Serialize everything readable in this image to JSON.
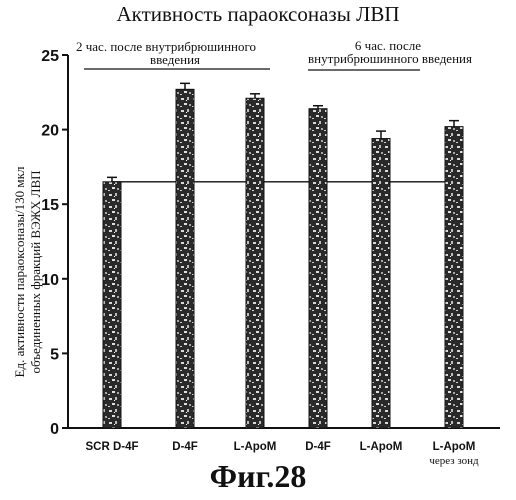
{
  "title": "Активность параоксоназы ЛВП",
  "figure_label": "Фиг.28",
  "ylabel_line1": "Ед. активности параоксоназы/130 мкл",
  "ylabel_line2": "объединенных фракций ВЭЖХ ЛВП",
  "annotations": {
    "group1_line1": "2 час. после внутрибрюшинного",
    "group1_line2": "введения",
    "group2_line1": "6 час. после",
    "group2_line2": "внутрибрюшинного введения"
  },
  "chart_data": {
    "type": "bar",
    "title": "Активность параоксоназы ЛВП",
    "xlabel": "",
    "ylabel": "Ед. активности параоксоназы/130 мкл объединенных фракций ВЭЖХ ЛВП",
    "categories": [
      [
        "SCR D-4F"
      ],
      [
        "D-4F"
      ],
      [
        "L-ApoM"
      ],
      [
        "D-4F"
      ],
      [
        "L-ApoM"
      ],
      [
        "L-ApoM",
        "через зонд"
      ]
    ],
    "values": [
      16.5,
      22.7,
      22.1,
      21.4,
      19.4,
      20.2
    ],
    "errors": [
      0.3,
      0.4,
      0.3,
      0.2,
      0.5,
      0.4
    ],
    "reference_line": 16.5,
    "ylim": [
      0,
      25
    ],
    "yticks": [
      "0",
      "5",
      "10",
      "15",
      "20",
      "25"
    ],
    "grid": false,
    "legend": "none"
  }
}
